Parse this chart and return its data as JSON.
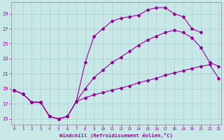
{
  "xlabel": "Windchill (Refroidissement éolien,°C)",
  "bg_color": "#c8e8e8",
  "grid_color": "#a8d0d0",
  "line_color": "#990099",
  "xlim": [
    -0.3,
    23.3
  ],
  "ylim": [
    14.2,
    30.5
  ],
  "xticks": [
    0,
    1,
    2,
    3,
    4,
    5,
    6,
    7,
    8,
    9,
    10,
    11,
    12,
    13,
    14,
    15,
    16,
    17,
    18,
    19,
    20,
    21,
    22,
    23
  ],
  "yticks": [
    15,
    17,
    19,
    21,
    23,
    25,
    27,
    29
  ],
  "line_top": {
    "x": [
      0,
      1,
      2,
      3,
      4,
      5,
      6,
      7,
      8,
      9,
      10,
      11,
      12,
      13,
      14,
      15,
      16,
      17,
      18,
      19,
      20,
      21,
      22,
      23
    ],
    "y": [
      18.8,
      18.3,
      17.2,
      17.2,
      15.3,
      15.0,
      15.3,
      17.3,
      22.5,
      26.0,
      27.0,
      28.0,
      28.4,
      28.6,
      28.8,
      29.5,
      29.8,
      29.8,
      29.0,
      28.6,
      27.0,
      26.5,
      null,
      null
    ]
  },
  "line_mid": {
    "x": [
      0,
      1,
      2,
      3,
      4,
      5,
      6,
      7,
      8,
      9,
      10,
      11,
      12,
      13,
      14,
      15,
      16,
      17,
      18,
      19,
      20,
      21,
      22,
      23
    ],
    "y": [
      18.8,
      18.3,
      17.2,
      17.2,
      15.3,
      15.0,
      15.3,
      17.3,
      19.0,
      20.5,
      21.5,
      22.5,
      23.2,
      24.0,
      24.8,
      25.5,
      26.0,
      26.5,
      26.8,
      26.5,
      25.8,
      24.5,
      22.5,
      22.0
    ]
  },
  "line_bot": {
    "x": [
      0,
      1,
      2,
      3,
      4,
      5,
      6,
      7,
      8,
      9,
      10,
      11,
      12,
      13,
      14,
      15,
      16,
      17,
      18,
      19,
      20,
      21,
      22,
      23
    ],
    "y": [
      18.8,
      18.3,
      17.2,
      17.2,
      15.3,
      15.0,
      15.3,
      17.3,
      17.8,
      18.2,
      18.5,
      18.8,
      19.1,
      19.4,
      19.8,
      20.1,
      20.4,
      20.8,
      21.1,
      21.4,
      21.7,
      22.0,
      22.2,
      20.4
    ]
  }
}
